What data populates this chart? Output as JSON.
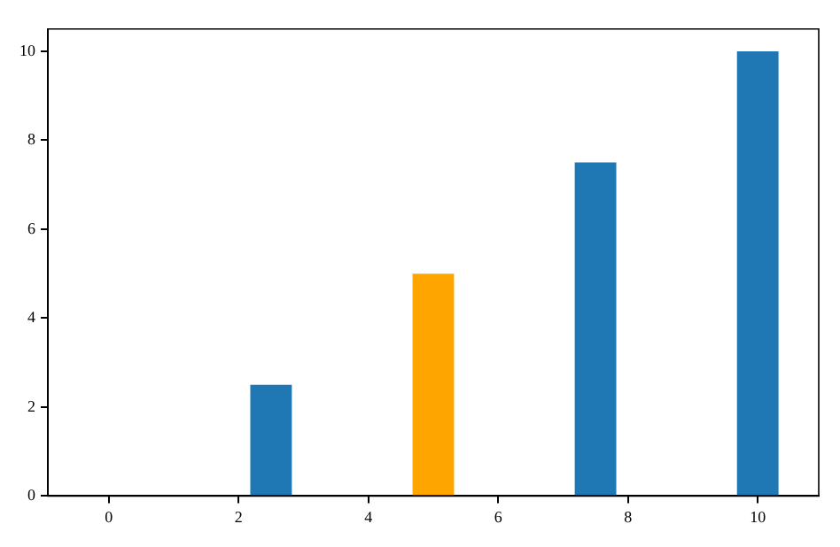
{
  "chart_data": {
    "type": "bar",
    "x": [
      2.5,
      5,
      7.5,
      10
    ],
    "values": [
      2.5,
      5,
      7.5,
      10
    ],
    "colors": [
      "#1f77b4",
      "#ffa500",
      "#1f77b4",
      "#1f77b4"
    ],
    "xlim": [
      -0.94,
      10.94
    ],
    "xticks": [
      0,
      2,
      4,
      6,
      8,
      10
    ],
    "ylim": [
      0,
      10.5
    ],
    "yticks": [
      0,
      2,
      4,
      6,
      8,
      10
    ],
    "grid": false,
    "legend": false
  }
}
